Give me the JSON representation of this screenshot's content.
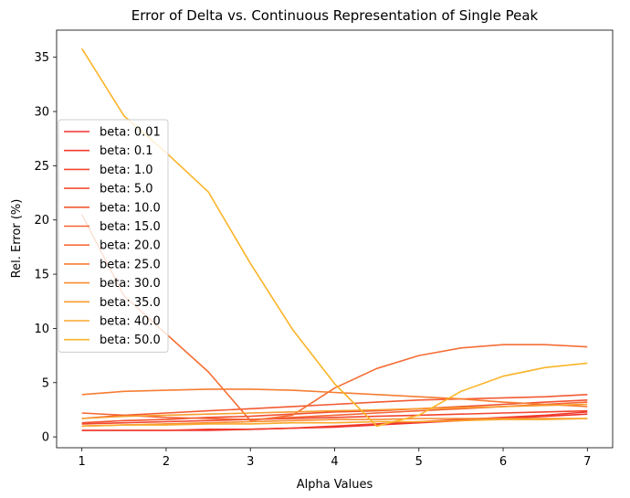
{
  "chart_data": {
    "type": "line",
    "title": "Error of Delta vs. Continuous Representation of Single Peak",
    "xlabel": "Alpha Values",
    "ylabel": "Rel. Error (%)",
    "xlim": [
      0.7,
      7.3
    ],
    "ylim": [
      -1.0,
      37.5
    ],
    "xticks": [
      1,
      2,
      3,
      4,
      5,
      6,
      7
    ],
    "yticks": [
      0,
      5,
      10,
      15,
      20,
      25,
      30,
      35
    ],
    "grid": false,
    "legend_position": "center-left",
    "x": [
      1,
      1.5,
      2,
      2.5,
      3,
      3.5,
      4,
      4.5,
      5,
      5.5,
      6,
      6.5,
      7
    ],
    "series": [
      {
        "name": "beta: 0.01",
        "color": "#f0322d",
        "values": [
          0.6,
          0.6,
          0.6,
          0.6,
          0.7,
          0.8,
          0.9,
          1.1,
          1.3,
          1.5,
          1.7,
          1.9,
          2.1
        ]
      },
      {
        "name": "beta: 0.1",
        "color": "#f03c2e",
        "values": [
          0.6,
          0.6,
          0.6,
          0.7,
          0.7,
          0.8,
          1.0,
          1.2,
          1.4,
          1.6,
          1.8,
          2.0,
          2.3
        ]
      },
      {
        "name": "beta: 1.0",
        "color": "#f1462f",
        "values": [
          1.2,
          1.3,
          1.4,
          1.5,
          1.6,
          1.7,
          1.8,
          1.9,
          2.0,
          2.1,
          2.2,
          2.3,
          2.4
        ]
      },
      {
        "name": "beta: 5.0",
        "color": "#f25131",
        "values": [
          1.3,
          1.5,
          1.6,
          1.8,
          1.9,
          2.1,
          2.3,
          2.4,
          2.6,
          2.8,
          3.0,
          3.2,
          3.4
        ]
      },
      {
        "name": "beta: 10.0",
        "color": "#f35a32",
        "values": [
          1.7,
          2.0,
          2.2,
          2.4,
          2.6,
          2.8,
          3.0,
          3.2,
          3.4,
          3.5,
          3.6,
          3.7,
          3.9
        ]
      },
      {
        "name": "beta: 15.0",
        "color": "#f46433",
        "values": [
          2.2,
          2.0,
          1.8,
          1.7,
          1.6,
          1.8,
          2.0,
          2.2,
          2.4,
          2.6,
          2.8,
          3.0,
          3.2
        ]
      },
      {
        "name": "beta: 20.0",
        "color": "#f56e35",
        "values": [
          20.5,
          13.0,
          9.5,
          6.0,
          1.5,
          2.0,
          4.5,
          6.3,
          7.5,
          8.2,
          8.5,
          8.5,
          8.3
        ]
      },
      {
        "name": "beta: 25.0",
        "color": "#f67d33",
        "values": [
          3.9,
          4.2,
          4.3,
          4.4,
          4.4,
          4.3,
          4.1,
          3.9,
          3.7,
          3.5,
          3.2,
          3.0,
          2.8
        ]
      },
      {
        "name": "beta: 30.0",
        "color": "#f78c31",
        "values": [
          1.0,
          1.1,
          1.2,
          1.3,
          1.4,
          1.5,
          1.6,
          1.6,
          1.7,
          1.7,
          1.7,
          1.7,
          1.7
        ]
      },
      {
        "name": "beta: 35.0",
        "color": "#f89c2e",
        "values": [
          1.7,
          1.9,
          2.0,
          2.1,
          2.2,
          2.3,
          2.4,
          2.5,
          2.6,
          2.7,
          2.8,
          2.9,
          3.0
        ]
      },
      {
        "name": "beta: 40.0",
        "color": "#f9a92b",
        "values": [
          1.0,
          1.1,
          1.1,
          1.2,
          1.2,
          1.3,
          1.3,
          1.4,
          1.4,
          1.5,
          1.6,
          1.6,
          1.7
        ]
      },
      {
        "name": "beta: 50.0",
        "color": "#fbb428",
        "values": [
          35.8,
          29.6,
          26.2,
          22.6,
          16.0,
          9.9,
          4.9,
          1.0,
          2.0,
          4.2,
          5.6,
          6.4,
          6.8
        ]
      }
    ]
  }
}
